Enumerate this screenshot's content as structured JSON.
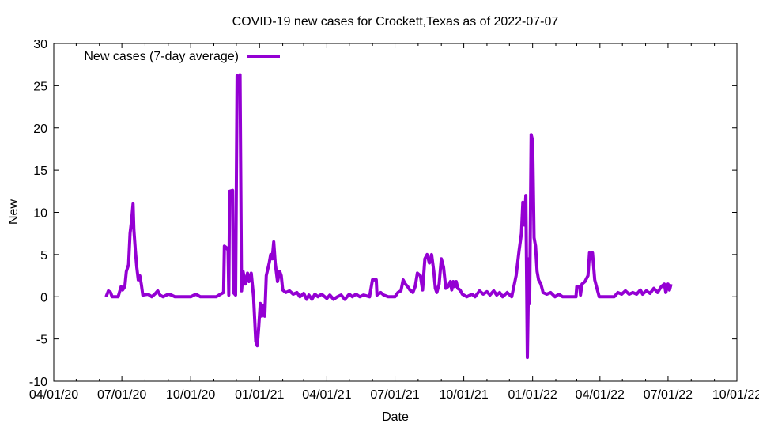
{
  "chart_data": {
    "type": "line",
    "title": "COVID-19 new cases for Crockett,Texas as of 2022-07-07",
    "xlabel": "Date",
    "ylabel": "New",
    "x_type": "date",
    "xlim": [
      "2020-04-01",
      "2022-10-01"
    ],
    "ylim": [
      -10,
      30
    ],
    "x_ticks": [
      {
        "date": "2020-04-01",
        "label": "04/01/20"
      },
      {
        "date": "2020-07-01",
        "label": "07/01/20"
      },
      {
        "date": "2020-10-01",
        "label": "10/01/20"
      },
      {
        "date": "2021-01-01",
        "label": "01/01/21"
      },
      {
        "date": "2021-04-01",
        "label": "04/01/21"
      },
      {
        "date": "2021-07-01",
        "label": "07/01/21"
      },
      {
        "date": "2021-10-01",
        "label": "10/01/21"
      },
      {
        "date": "2022-01-01",
        "label": "01/01/22"
      },
      {
        "date": "2022-04-01",
        "label": "04/01/22"
      },
      {
        "date": "2022-07-01",
        "label": "07/01/22"
      },
      {
        "date": "2022-10-01",
        "label": "10/01/22"
      }
    ],
    "y_ticks": [
      -10,
      -5,
      0,
      5,
      10,
      15,
      20,
      25,
      30
    ],
    "grid": false,
    "legend": "top-left",
    "series": [
      {
        "name": "New cases (7-day average)",
        "color": "#9400d3",
        "points": [
          [
            "2020-06-10",
            0.0
          ],
          [
            "2020-06-13",
            0.7
          ],
          [
            "2020-06-16",
            0.5
          ],
          [
            "2020-06-18",
            0.0
          ],
          [
            "2020-06-26",
            0.0
          ],
          [
            "2020-06-30",
            1.2
          ],
          [
            "2020-07-02",
            0.8
          ],
          [
            "2020-07-05",
            1.2
          ],
          [
            "2020-07-07",
            3.0
          ],
          [
            "2020-07-10",
            3.8
          ],
          [
            "2020-07-12",
            7.5
          ],
          [
            "2020-07-14",
            9.0
          ],
          [
            "2020-07-16",
            11.0
          ],
          [
            "2020-07-17",
            8.0
          ],
          [
            "2020-07-19",
            5.5
          ],
          [
            "2020-07-21",
            3.5
          ],
          [
            "2020-07-23",
            2.0
          ],
          [
            "2020-07-25",
            2.5
          ],
          [
            "2020-07-27",
            1.5
          ],
          [
            "2020-07-29",
            0.2
          ],
          [
            "2020-08-05",
            0.3
          ],
          [
            "2020-08-10",
            0.0
          ],
          [
            "2020-08-15",
            0.4
          ],
          [
            "2020-08-18",
            0.7
          ],
          [
            "2020-08-21",
            0.2
          ],
          [
            "2020-08-25",
            0.0
          ],
          [
            "2020-09-01",
            0.3
          ],
          [
            "2020-09-05",
            0.2
          ],
          [
            "2020-09-10",
            0.0
          ],
          [
            "2020-10-01",
            0.0
          ],
          [
            "2020-10-08",
            0.3
          ],
          [
            "2020-10-14",
            0.0
          ],
          [
            "2020-11-04",
            0.0
          ],
          [
            "2020-11-10",
            0.3
          ],
          [
            "2020-11-14",
            0.5
          ],
          [
            "2020-11-15",
            6.0
          ],
          [
            "2020-11-18",
            5.8
          ],
          [
            "2020-11-20",
            5.5
          ],
          [
            "2020-11-21",
            0.2
          ],
          [
            "2020-11-22",
            12.5
          ],
          [
            "2020-11-26",
            12.6
          ],
          [
            "2020-11-27",
            0.5
          ],
          [
            "2020-11-30",
            0.2
          ],
          [
            "2020-12-02",
            26.2
          ],
          [
            "2020-12-04",
            25.0
          ],
          [
            "2020-12-06",
            26.3
          ],
          [
            "2020-12-08",
            0.7
          ],
          [
            "2020-12-10",
            3.0
          ],
          [
            "2020-12-13",
            1.5
          ],
          [
            "2020-12-16",
            2.8
          ],
          [
            "2020-12-18",
            1.8
          ],
          [
            "2020-12-21",
            2.8
          ],
          [
            "2020-12-24",
            0.0
          ],
          [
            "2020-12-27",
            -5.3
          ],
          [
            "2020-12-29",
            -5.8
          ],
          [
            "2020-12-31",
            -3.5
          ],
          [
            "2021-01-02",
            -0.8
          ],
          [
            "2021-01-04",
            -2.3
          ],
          [
            "2021-01-06",
            -1.0
          ],
          [
            "2021-01-08",
            -2.3
          ],
          [
            "2021-01-10",
            2.5
          ],
          [
            "2021-01-14",
            4.0
          ],
          [
            "2021-01-16",
            5.0
          ],
          [
            "2021-01-18",
            4.5
          ],
          [
            "2021-01-20",
            6.5
          ],
          [
            "2021-01-22",
            4.0
          ],
          [
            "2021-01-25",
            1.8
          ],
          [
            "2021-01-28",
            3.0
          ],
          [
            "2021-01-30",
            2.5
          ],
          [
            "2021-02-01",
            0.8
          ],
          [
            "2021-02-05",
            0.5
          ],
          [
            "2021-02-10",
            0.7
          ],
          [
            "2021-02-15",
            0.3
          ],
          [
            "2021-02-20",
            0.5
          ],
          [
            "2021-02-24",
            0.0
          ],
          [
            "2021-03-01",
            0.4
          ],
          [
            "2021-03-05",
            -0.3
          ],
          [
            "2021-03-08",
            0.2
          ],
          [
            "2021-03-12",
            -0.3
          ],
          [
            "2021-03-16",
            0.3
          ],
          [
            "2021-03-20",
            0.0
          ],
          [
            "2021-03-25",
            0.3
          ],
          [
            "2021-04-01",
            -0.2
          ],
          [
            "2021-04-05",
            0.2
          ],
          [
            "2021-04-10",
            -0.3
          ],
          [
            "2021-04-15",
            0.0
          ],
          [
            "2021-04-20",
            0.2
          ],
          [
            "2021-04-25",
            -0.3
          ],
          [
            "2021-05-01",
            0.3
          ],
          [
            "2021-05-05",
            0.0
          ],
          [
            "2021-05-10",
            0.3
          ],
          [
            "2021-05-15",
            0.0
          ],
          [
            "2021-05-20",
            0.2
          ],
          [
            "2021-05-28",
            0.0
          ],
          [
            "2021-06-01",
            2.0
          ],
          [
            "2021-06-06",
            2.0
          ],
          [
            "2021-06-07",
            0.2
          ],
          [
            "2021-06-12",
            0.5
          ],
          [
            "2021-06-16",
            0.2
          ],
          [
            "2021-06-22",
            0.0
          ],
          [
            "2021-07-01",
            0.0
          ],
          [
            "2021-07-05",
            0.5
          ],
          [
            "2021-07-09",
            0.7
          ],
          [
            "2021-07-12",
            2.0
          ],
          [
            "2021-07-15",
            1.5
          ],
          [
            "2021-07-18",
            1.2
          ],
          [
            "2021-07-21",
            0.8
          ],
          [
            "2021-07-25",
            0.5
          ],
          [
            "2021-07-28",
            1.2
          ],
          [
            "2021-07-31",
            2.8
          ],
          [
            "2021-08-04",
            2.5
          ],
          [
            "2021-08-07",
            0.8
          ],
          [
            "2021-08-10",
            4.5
          ],
          [
            "2021-08-13",
            5.0
          ],
          [
            "2021-08-16",
            4.0
          ],
          [
            "2021-08-19",
            5.0
          ],
          [
            "2021-08-22",
            3.0
          ],
          [
            "2021-08-24",
            1.0
          ],
          [
            "2021-08-26",
            0.5
          ],
          [
            "2021-08-29",
            1.5
          ],
          [
            "2021-09-01",
            4.5
          ],
          [
            "2021-09-04",
            3.5
          ],
          [
            "2021-09-07",
            1.0
          ],
          [
            "2021-09-10",
            1.2
          ],
          [
            "2021-09-13",
            1.8
          ],
          [
            "2021-09-15",
            0.8
          ],
          [
            "2021-09-17",
            1.8
          ],
          [
            "2021-09-19",
            1.2
          ],
          [
            "2021-09-21",
            1.8
          ],
          [
            "2021-09-23",
            1.0
          ],
          [
            "2021-09-26",
            0.8
          ],
          [
            "2021-09-29",
            0.3
          ],
          [
            "2021-10-05",
            0.0
          ],
          [
            "2021-10-12",
            0.3
          ],
          [
            "2021-10-16",
            0.0
          ],
          [
            "2021-10-22",
            0.7
          ],
          [
            "2021-10-27",
            0.3
          ],
          [
            "2021-11-01",
            0.6
          ],
          [
            "2021-11-05",
            0.2
          ],
          [
            "2021-11-10",
            0.7
          ],
          [
            "2021-11-14",
            0.2
          ],
          [
            "2021-11-18",
            0.5
          ],
          [
            "2021-11-22",
            0.0
          ],
          [
            "2021-11-28",
            0.5
          ],
          [
            "2021-12-04",
            0.0
          ],
          [
            "2021-12-10",
            2.5
          ],
          [
            "2021-12-14",
            5.5
          ],
          [
            "2021-12-17",
            7.5
          ],
          [
            "2021-12-19",
            11.2
          ],
          [
            "2021-12-21",
            8.5
          ],
          [
            "2021-12-23",
            12.0
          ],
          [
            "2021-12-25",
            -7.2
          ],
          [
            "2021-12-27",
            4.5
          ],
          [
            "2021-12-28",
            -0.8
          ],
          [
            "2021-12-30",
            19.2
          ],
          [
            "2022-01-01",
            18.5
          ],
          [
            "2022-01-03",
            7.0
          ],
          [
            "2022-01-05",
            6.0
          ],
          [
            "2022-01-07",
            3.0
          ],
          [
            "2022-01-09",
            2.0
          ],
          [
            "2022-01-12",
            1.5
          ],
          [
            "2022-01-15",
            0.5
          ],
          [
            "2022-01-20",
            0.3
          ],
          [
            "2022-01-25",
            0.5
          ],
          [
            "2022-01-31",
            0.0
          ],
          [
            "2022-02-05",
            0.3
          ],
          [
            "2022-02-10",
            0.0
          ],
          [
            "2022-02-28",
            0.0
          ],
          [
            "2022-03-01",
            1.2
          ],
          [
            "2022-03-05",
            1.2
          ],
          [
            "2022-03-06",
            0.2
          ],
          [
            "2022-03-08",
            1.5
          ],
          [
            "2022-03-12",
            1.8
          ],
          [
            "2022-03-16",
            2.5
          ],
          [
            "2022-03-18",
            5.2
          ],
          [
            "2022-03-20",
            4.5
          ],
          [
            "2022-03-22",
            5.2
          ],
          [
            "2022-03-25",
            2.0
          ],
          [
            "2022-03-28",
            1.0
          ],
          [
            "2022-03-31",
            0.0
          ],
          [
            "2022-04-20",
            0.0
          ],
          [
            "2022-04-25",
            0.5
          ],
          [
            "2022-04-30",
            0.3
          ],
          [
            "2022-05-05",
            0.7
          ],
          [
            "2022-05-10",
            0.3
          ],
          [
            "2022-05-15",
            0.5
          ],
          [
            "2022-05-20",
            0.3
          ],
          [
            "2022-05-25",
            0.8
          ],
          [
            "2022-05-28",
            0.3
          ],
          [
            "2022-06-02",
            0.7
          ],
          [
            "2022-06-07",
            0.4
          ],
          [
            "2022-06-12",
            1.0
          ],
          [
            "2022-06-17",
            0.5
          ],
          [
            "2022-06-22",
            1.2
          ],
          [
            "2022-06-26",
            1.5
          ],
          [
            "2022-06-28",
            0.5
          ],
          [
            "2022-07-01",
            1.5
          ],
          [
            "2022-07-03",
            0.8
          ],
          [
            "2022-07-05",
            1.5
          ]
        ]
      }
    ]
  }
}
